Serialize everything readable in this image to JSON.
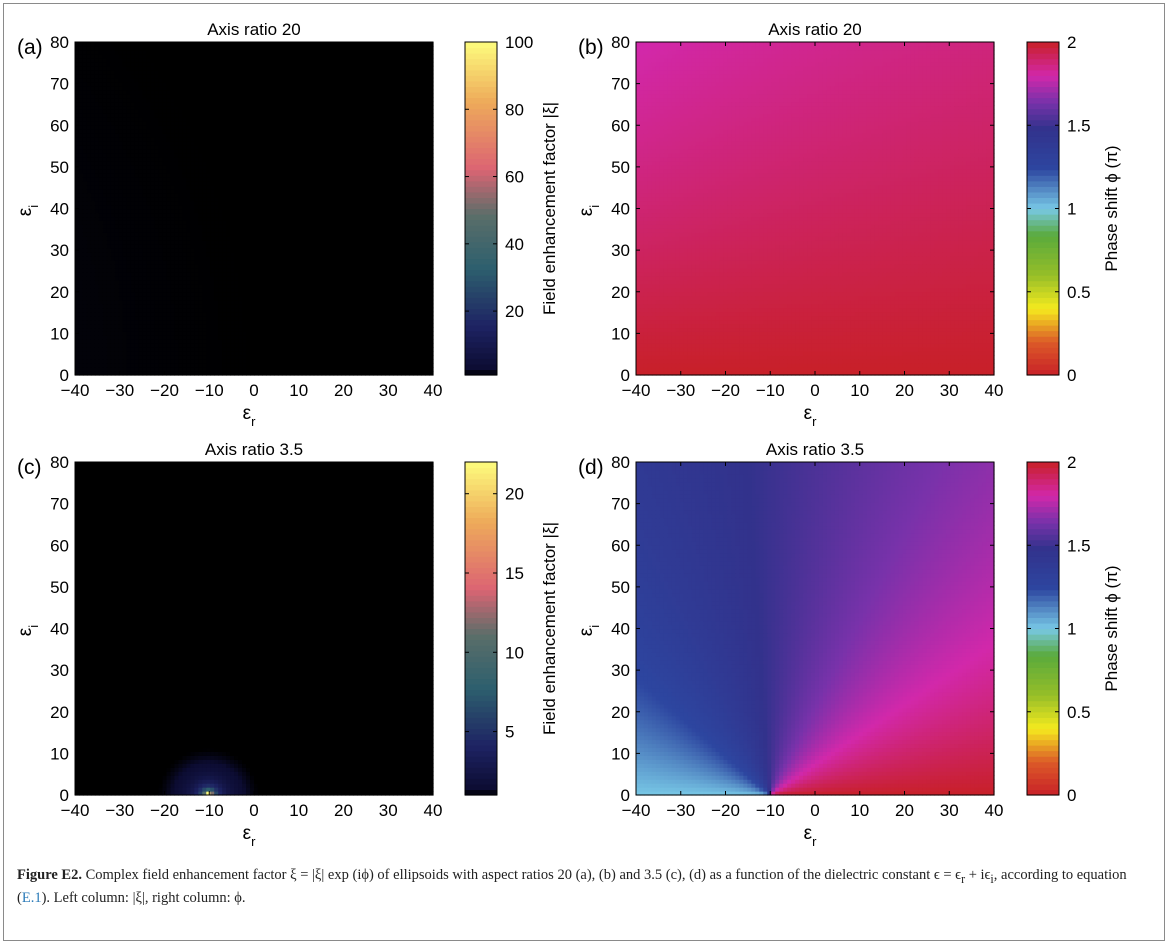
{
  "chart_data": [
    {
      "id": "a",
      "type": "heatmap",
      "panel_label": "(a)",
      "title": "Axis ratio 20",
      "xlabel": "ε_r",
      "ylabel": "ε_i",
      "xlim": [
        -40,
        40
      ],
      "ylim": [
        0,
        80
      ],
      "xticks": [
        -40,
        -30,
        -20,
        -10,
        0,
        10,
        20,
        30,
        40
      ],
      "yticks": [
        0,
        10,
        20,
        30,
        40,
        50,
        60,
        70,
        80
      ],
      "quantity": "magnitude",
      "aspect_ratio": 20,
      "colorbar": {
        "label": "Field enhancement factor |ξ|",
        "range": [
          1,
          100
        ],
        "ticks": [
          20,
          40,
          60,
          80,
          100
        ],
        "colormap": "black-navy-teal-grey-pink-orange-yellow"
      },
      "grid": false,
      "legend": "none"
    },
    {
      "id": "b",
      "type": "heatmap",
      "panel_label": "(b)",
      "title": "Axis ratio 20",
      "xlabel": "ε_r",
      "ylabel": "ε_i",
      "xlim": [
        -40,
        40
      ],
      "ylim": [
        0,
        80
      ],
      "xticks": [
        -40,
        -30,
        -20,
        -10,
        0,
        10,
        20,
        30,
        40
      ],
      "yticks": [
        0,
        10,
        20,
        30,
        40,
        50,
        60,
        70,
        80
      ],
      "quantity": "phase",
      "aspect_ratio": 20,
      "colorbar": {
        "label": "Phase shift ϕ (π)",
        "range": [
          0,
          2
        ],
        "ticks": [
          0,
          0.5,
          1,
          1.5,
          2
        ],
        "colormap": "red-orange-yellow-green-cyan-blue-purple-magenta-red"
      },
      "grid": false,
      "legend": "none"
    },
    {
      "id": "c",
      "type": "heatmap",
      "panel_label": "(c)",
      "title": "Axis ratio 3.5",
      "xlabel": "ε_r",
      "ylabel": "ε_i",
      "xlim": [
        -40,
        40
      ],
      "ylim": [
        0,
        80
      ],
      "xticks": [
        -40,
        -30,
        -20,
        -10,
        0,
        10,
        20,
        30,
        40
      ],
      "yticks": [
        0,
        10,
        20,
        30,
        40,
        50,
        60,
        70,
        80
      ],
      "quantity": "magnitude",
      "aspect_ratio": 3.5,
      "colorbar": {
        "label": "Field enhancement factor |ξ|",
        "range": [
          1,
          22
        ],
        "ticks": [
          5,
          10,
          15,
          20
        ],
        "colormap": "black-navy-teal-grey-pink-orange-yellow"
      },
      "grid": false,
      "legend": "none"
    },
    {
      "id": "d",
      "type": "heatmap",
      "panel_label": "(d)",
      "title": "Axis ratio 3.5",
      "xlabel": "ε_r",
      "ylabel": "ε_i",
      "xlim": [
        -40,
        40
      ],
      "ylim": [
        0,
        80
      ],
      "xticks": [
        -40,
        -30,
        -20,
        -10,
        0,
        10,
        20,
        30,
        40
      ],
      "yticks": [
        0,
        10,
        20,
        30,
        40,
        50,
        60,
        70,
        80
      ],
      "quantity": "phase",
      "aspect_ratio": 3.5,
      "colorbar": {
        "label": "Phase shift ϕ (π)",
        "range": [
          0,
          2
        ],
        "ticks": [
          0,
          0.5,
          1,
          1.5,
          2
        ],
        "colormap": "red-orange-yellow-green-cyan-blue-purple-magenta-red"
      },
      "grid": false,
      "legend": "none"
    }
  ],
  "caption": {
    "label": "Figure E2.",
    "text_1": " Complex field enhancement factor ξ = |ξ| exp (iϕ) of ellipsoids with aspect ratios 20 (a), (b) and 3.5 (c), (d) as a function of the dielectric constant ϵ = ϵ",
    "sub_r": "r",
    "text_2": " + iϵ",
    "sub_i": "i",
    "text_3": ", according to equation (",
    "eq_ref": "E.1",
    "text_4": "). Left column: |ξ|, right column: ϕ."
  }
}
